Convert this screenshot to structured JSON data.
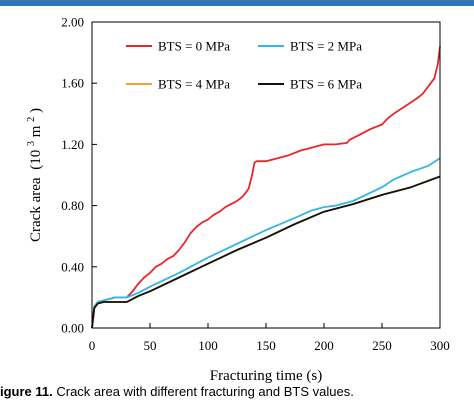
{
  "caption": {
    "prefix": "igure 11.",
    "text": " Crack area with different fracturing and BTS values."
  },
  "chart_data": {
    "type": "line",
    "title": "",
    "xlabel": "Fracturing time (s)",
    "ylabel": "Crack area",
    "ylabel_unit_base": "(10",
    "ylabel_unit_exp": "3",
    "ylabel_unit_mid": " m",
    "ylabel_unit_exp2": "2",
    "ylabel_unit_end": ")",
    "xlim": [
      0,
      300
    ],
    "ylim": [
      0,
      2.0
    ],
    "x_ticks": [
      "0",
      "50",
      "100",
      "150",
      "200",
      "250",
      "300"
    ],
    "y_ticks": [
      "0.00",
      "0.40",
      "0.80",
      "1.20",
      "1.60",
      "2.00"
    ],
    "grid": false,
    "legend_position": "top, two columns",
    "series": [
      {
        "name": "BTS = 0 MPa",
        "color": "#e8272a",
        "x": [
          0,
          2,
          5,
          10,
          20,
          30,
          35,
          40,
          45,
          50,
          55,
          60,
          65,
          70,
          75,
          80,
          85,
          90,
          95,
          100,
          105,
          110,
          115,
          120,
          125,
          130,
          135,
          138,
          140,
          142,
          145,
          150,
          160,
          170,
          180,
          190,
          195,
          200,
          210,
          220,
          222,
          230,
          240,
          250,
          255,
          260,
          270,
          280,
          285,
          290,
          295,
          298,
          300
        ],
        "y": [
          0.0,
          0.14,
          0.17,
          0.18,
          0.2,
          0.2,
          0.24,
          0.29,
          0.33,
          0.36,
          0.4,
          0.42,
          0.45,
          0.47,
          0.51,
          0.56,
          0.62,
          0.66,
          0.69,
          0.71,
          0.74,
          0.76,
          0.79,
          0.81,
          0.83,
          0.86,
          0.91,
          1.0,
          1.08,
          1.09,
          1.09,
          1.09,
          1.11,
          1.13,
          1.16,
          1.18,
          1.19,
          1.2,
          1.2,
          1.21,
          1.23,
          1.26,
          1.3,
          1.33,
          1.37,
          1.4,
          1.45,
          1.5,
          1.53,
          1.58,
          1.63,
          1.72,
          1.84
        ]
      },
      {
        "name": "BTS = 2 MPa",
        "color": "#33b5e5",
        "x": [
          0,
          2,
          5,
          10,
          20,
          30,
          40,
          50,
          75,
          100,
          125,
          150,
          175,
          190,
          200,
          210,
          225,
          250,
          260,
          275,
          290,
          300
        ],
        "y": [
          0.0,
          0.14,
          0.17,
          0.18,
          0.2,
          0.2,
          0.23,
          0.27,
          0.36,
          0.46,
          0.55,
          0.64,
          0.72,
          0.77,
          0.79,
          0.8,
          0.83,
          0.92,
          0.97,
          1.02,
          1.06,
          1.11
        ]
      },
      {
        "name": "BTS = 4 MPa",
        "color": "#f0a030",
        "x": [
          0,
          2,
          5,
          10,
          20,
          30,
          40,
          50,
          75,
          100,
          125,
          150,
          175,
          200,
          225,
          250,
          275,
          300
        ],
        "y": [
          0.0,
          0.13,
          0.16,
          0.17,
          0.17,
          0.17,
          0.21,
          0.24,
          0.33,
          0.42,
          0.51,
          0.59,
          0.68,
          0.76,
          0.81,
          0.87,
          0.92,
          0.99
        ]
      },
      {
        "name": "BTS = 6 MPa",
        "color": "#111111",
        "x": [
          0,
          2,
          5,
          10,
          20,
          30,
          40,
          50,
          75,
          100,
          125,
          150,
          175,
          200,
          225,
          250,
          275,
          300
        ],
        "y": [
          0.0,
          0.13,
          0.16,
          0.17,
          0.17,
          0.17,
          0.21,
          0.24,
          0.33,
          0.42,
          0.51,
          0.59,
          0.68,
          0.76,
          0.81,
          0.87,
          0.92,
          0.99
        ]
      }
    ]
  }
}
